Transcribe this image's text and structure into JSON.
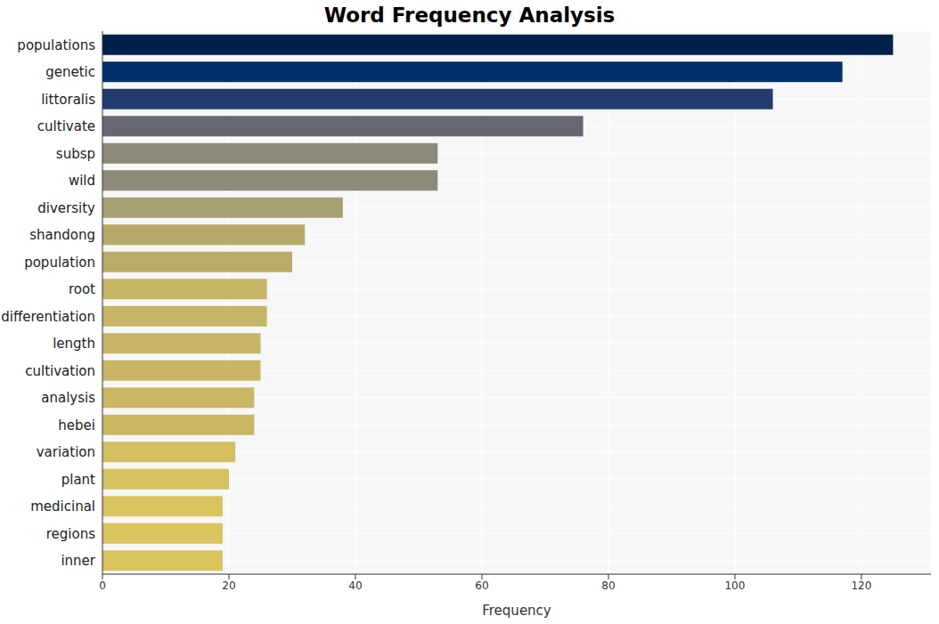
{
  "chart_data": {
    "type": "bar",
    "title": "Word Frequency Analysis",
    "x_label": "Frequency",
    "orientation": "horizontal",
    "categories": [
      "populations",
      "genetic",
      "littoralis",
      "cultivate",
      "subsp",
      "wild",
      "diversity",
      "shandong",
      "population",
      "root",
      "differentiation",
      "length",
      "cultivation",
      "analysis",
      "hebei",
      "variation",
      "plant",
      "medicinal",
      "regions",
      "inner"
    ],
    "values": [
      125,
      117,
      106,
      76,
      53,
      53,
      38,
      32,
      30,
      26,
      26,
      25,
      25,
      24,
      24,
      21,
      20,
      19,
      19,
      19
    ],
    "colors": [
      "#00204c",
      "#002f6a",
      "#243d6e",
      "#676970",
      "#8e8a79",
      "#8e8a79",
      "#a89f74",
      "#b8a96b",
      "#bbab6a",
      "#c6b467",
      "#c6b467",
      "#c8b566",
      "#c8b566",
      "#cab765",
      "#cab765",
      "#d3bf61",
      "#d5c160",
      "#d8c35e",
      "#d8c35e",
      "#d8c35e"
    ],
    "xlim": [
      0,
      131
    ],
    "xticks": [
      0,
      20,
      40,
      60,
      80,
      100,
      120
    ],
    "grid": true
  }
}
